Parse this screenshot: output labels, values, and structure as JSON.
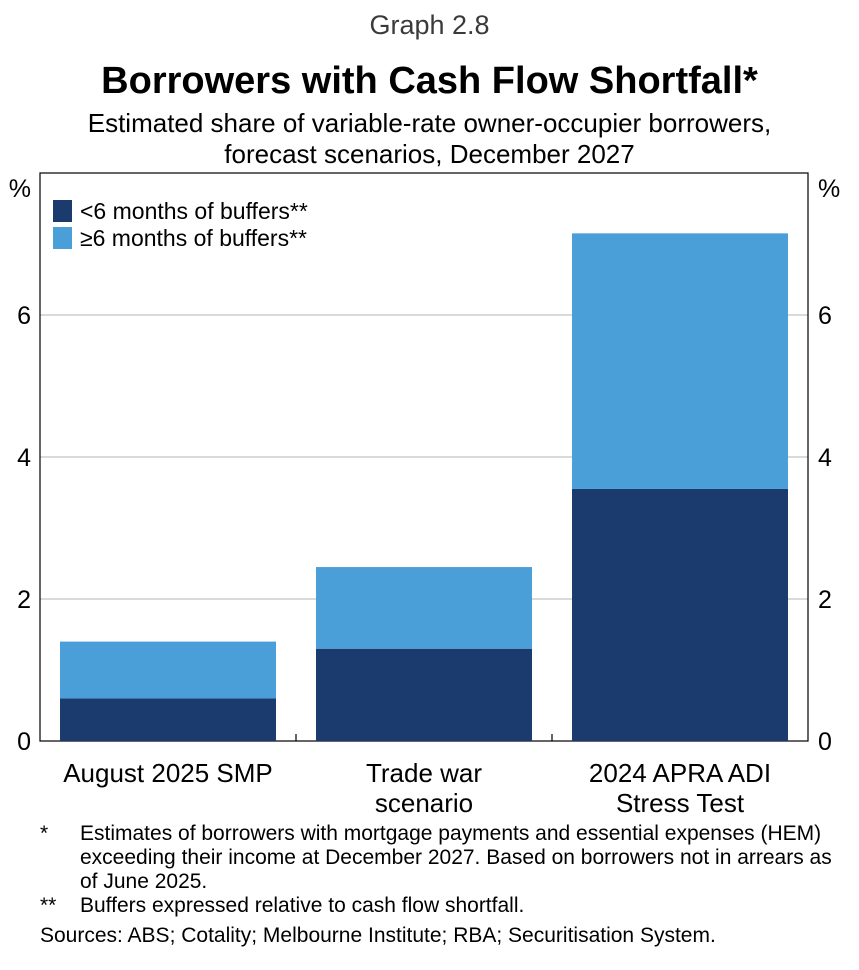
{
  "header": {
    "graph_number": "Graph 2.8",
    "title": "Borrowers with Cash Flow Shortfall*",
    "subtitle_line1": "Estimated share of variable-rate owner-occupier borrowers,",
    "subtitle_line2": "forecast scenarios, December 2027"
  },
  "chart_data": {
    "type": "bar",
    "stacked": true,
    "categories": [
      [
        "August 2025 SMP"
      ],
      [
        "Trade war",
        "scenario"
      ],
      [
        "2024 APRA ADI",
        "Stress Test"
      ]
    ],
    "series": [
      {
        "name": "<6 months of buffers**",
        "color": "#1b3b6f",
        "values": [
          0.6,
          1.3,
          3.55
        ]
      },
      {
        "name": "≥6 months of buffers**",
        "color": "#4a9fd9",
        "values": [
          0.8,
          1.15,
          3.6
        ]
      }
    ],
    "ylim": [
      0,
      8
    ],
    "yticks": [
      0,
      2,
      4,
      6
    ],
    "y_unit_left": "%",
    "y_unit_right": "%",
    "legend_position": "top-left",
    "grid": true
  },
  "footnotes": [
    {
      "mark": "*",
      "text": "Estimates of borrowers with mortgage payments and essential expenses (HEM) exceeding their income at December 2027. Based on borrowers not in arrears as of June 2025."
    },
    {
      "mark": "**",
      "text": "Buffers expressed relative to cash flow shortfall."
    }
  ],
  "sources": "Sources:  ABS; Cotality; Melbourne Institute; RBA; Securitisation System."
}
